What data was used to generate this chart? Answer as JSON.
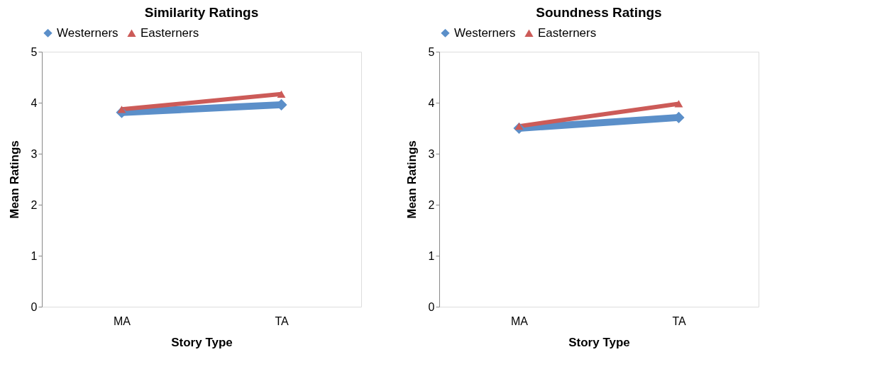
{
  "chart_data": [
    {
      "type": "line",
      "title": "Similarity Ratings",
      "xlabel": "Story Type",
      "ylabel": "Mean Ratings",
      "categories": [
        "MA",
        "TA"
      ],
      "series": [
        {
          "name": "Westerners",
          "color": "#5b8fc9",
          "values": [
            3.81,
            3.96
          ],
          "marker": "diamond"
        },
        {
          "name": "Easterners",
          "color": "#cc5b58",
          "values": [
            3.87,
            4.17
          ],
          "marker": "triangle"
        }
      ],
      "ylim": [
        0,
        5
      ],
      "yticks": [
        0,
        1,
        2,
        3,
        4,
        5
      ],
      "grid": false,
      "legend": "top"
    },
    {
      "type": "line",
      "title": "Soundness Ratings",
      "xlabel": "Story Type",
      "ylabel": "Mean Ratings",
      "categories": [
        "MA",
        "TA"
      ],
      "series": [
        {
          "name": "Westerners",
          "color": "#5b8fc9",
          "values": [
            3.5,
            3.71
          ],
          "marker": "diamond"
        },
        {
          "name": "Easterners",
          "color": "#cc5b58",
          "values": [
            3.54,
            3.98
          ],
          "marker": "triangle"
        }
      ],
      "ylim": [
        0,
        5
      ],
      "yticks": [
        0,
        1,
        2,
        3,
        4,
        5
      ],
      "grid": false,
      "legend": "top"
    }
  ]
}
